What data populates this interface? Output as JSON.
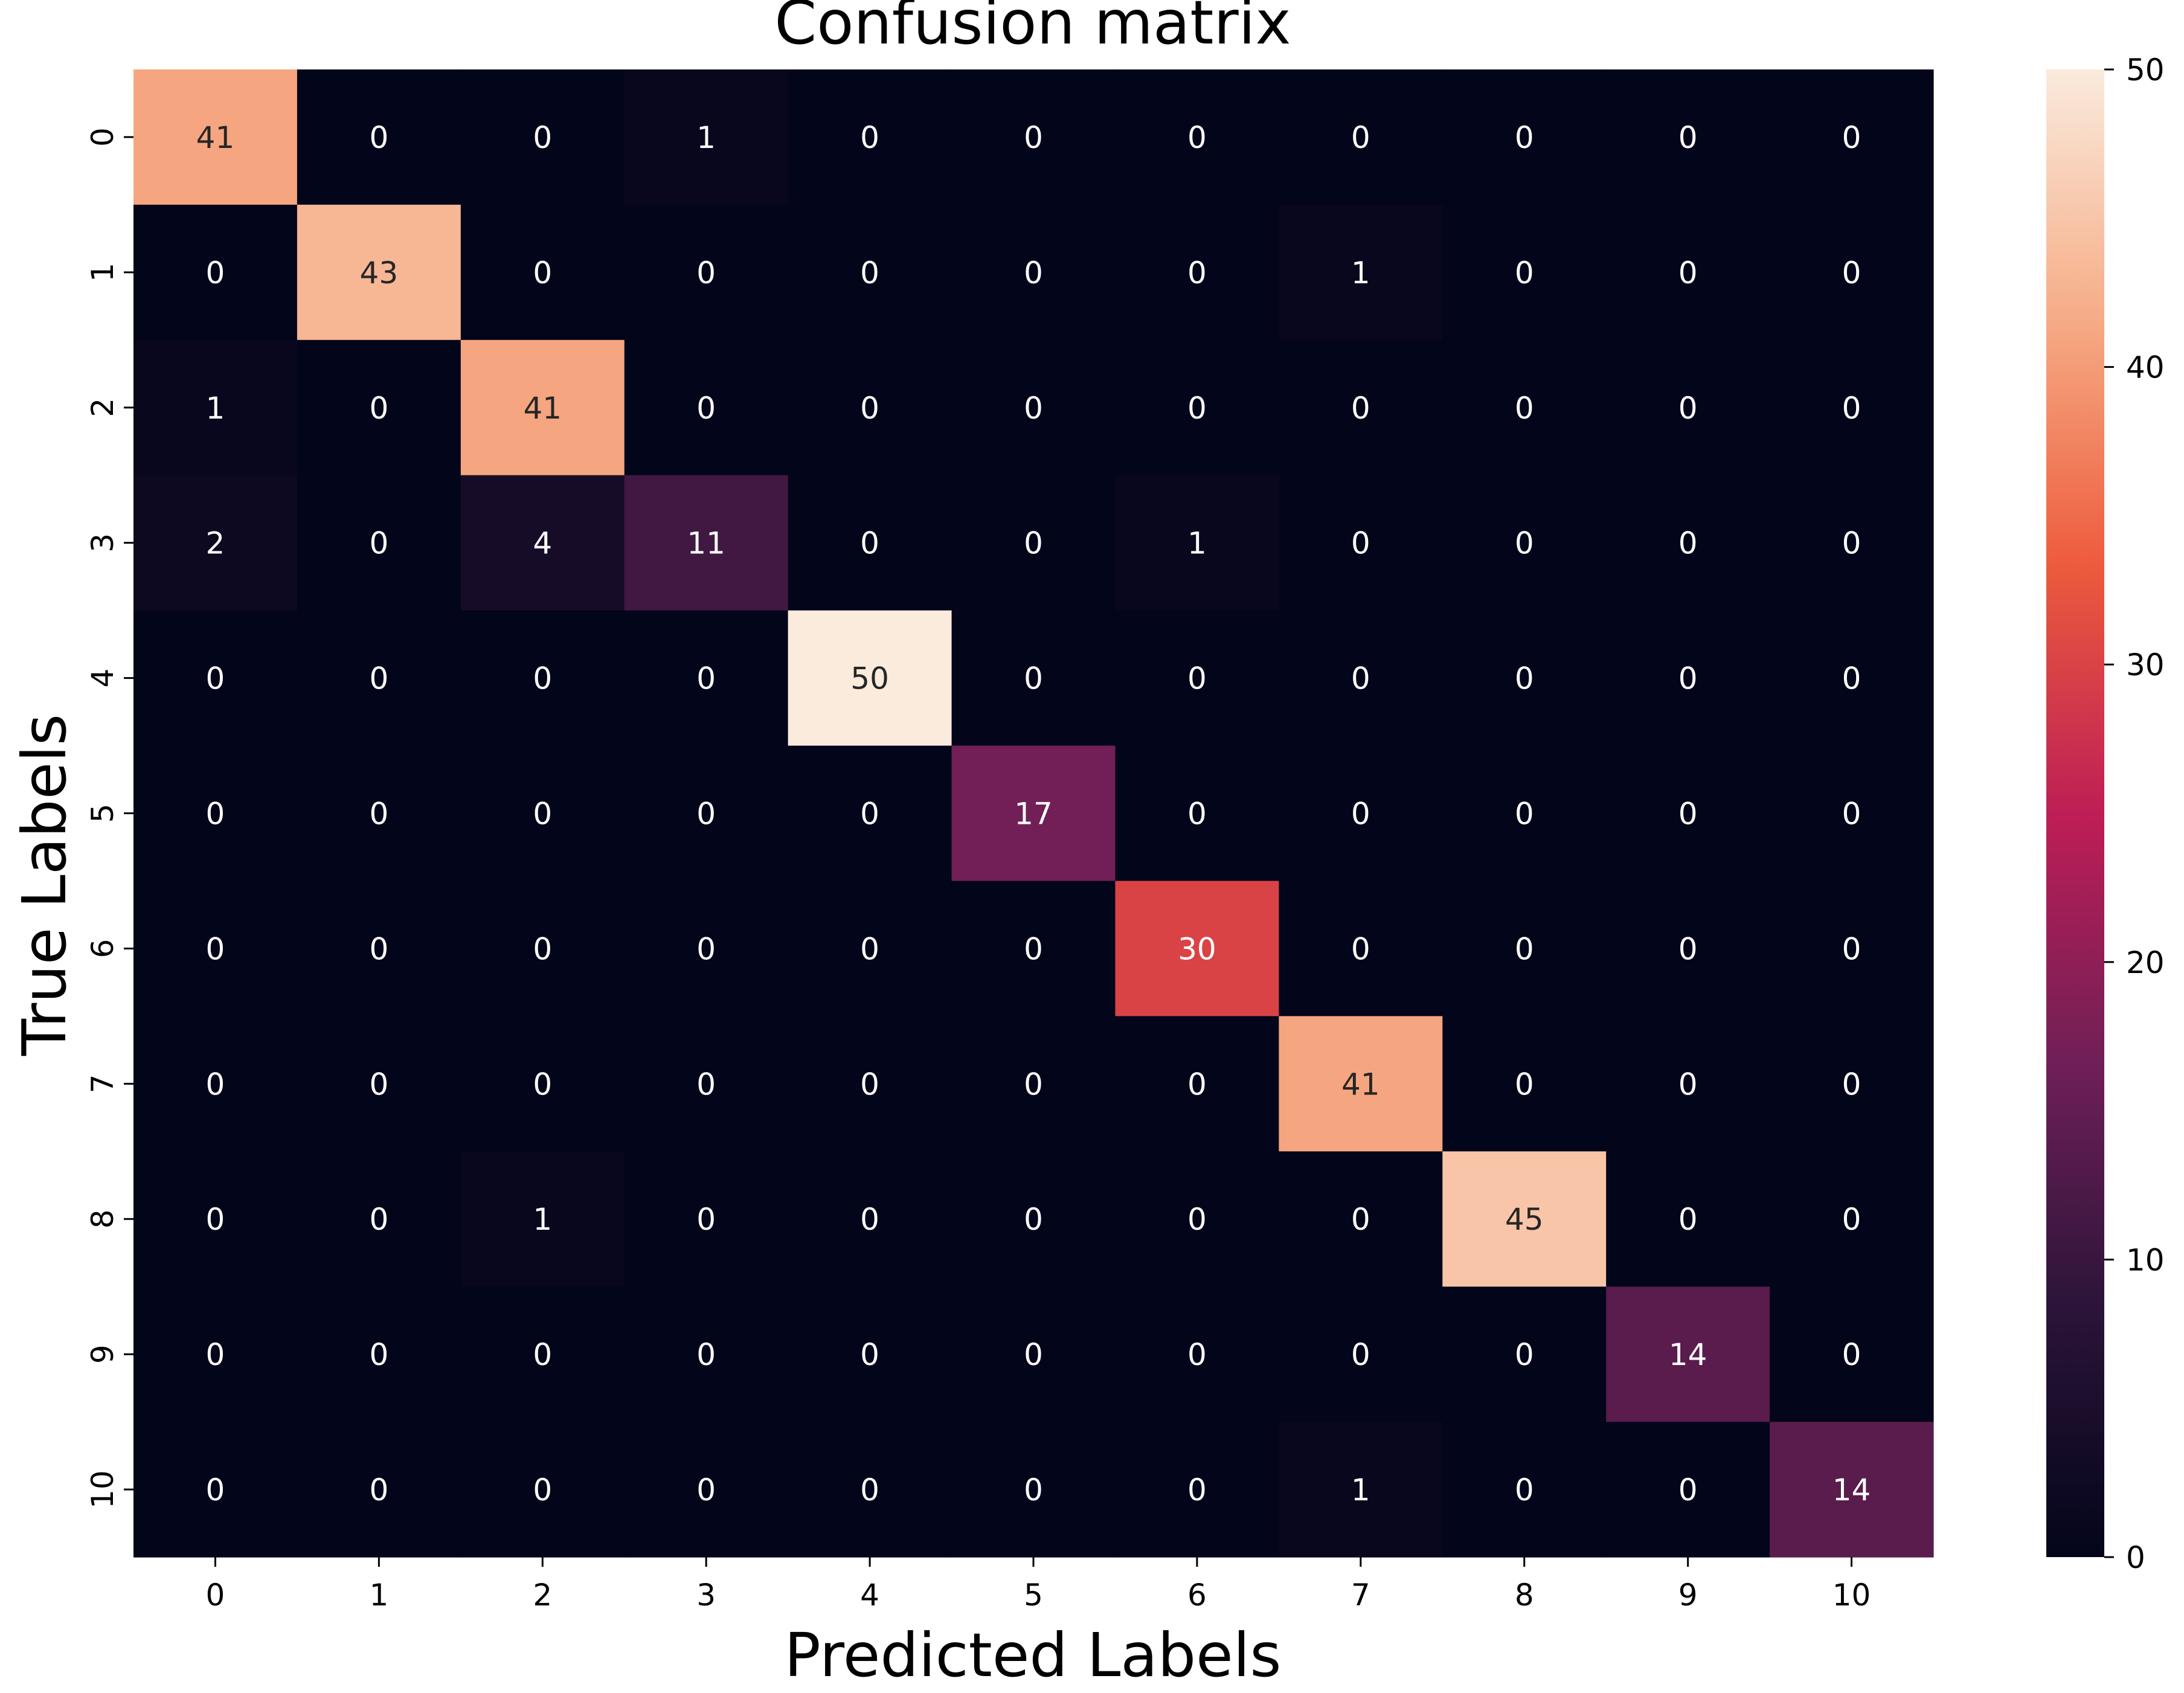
{
  "chart_data": {
    "type": "heatmap",
    "title": "Confusion matrix",
    "xlabel": "Predicted Labels",
    "ylabel": "True Labels",
    "x_categories": [
      "0",
      "1",
      "2",
      "3",
      "4",
      "5",
      "6",
      "7",
      "8",
      "9",
      "10"
    ],
    "y_categories": [
      "0",
      "1",
      "2",
      "3",
      "4",
      "5",
      "6",
      "7",
      "8",
      "9",
      "10"
    ],
    "values": [
      [
        41,
        0,
        0,
        1,
        0,
        0,
        0,
        0,
        0,
        0,
        0
      ],
      [
        0,
        43,
        0,
        0,
        0,
        0,
        0,
        1,
        0,
        0,
        0
      ],
      [
        1,
        0,
        41,
        0,
        0,
        0,
        0,
        0,
        0,
        0,
        0
      ],
      [
        2,
        0,
        4,
        11,
        0,
        0,
        1,
        0,
        0,
        0,
        0
      ],
      [
        0,
        0,
        0,
        0,
        50,
        0,
        0,
        0,
        0,
        0,
        0
      ],
      [
        0,
        0,
        0,
        0,
        0,
        17,
        0,
        0,
        0,
        0,
        0
      ],
      [
        0,
        0,
        0,
        0,
        0,
        0,
        30,
        0,
        0,
        0,
        0
      ],
      [
        0,
        0,
        0,
        0,
        0,
        0,
        0,
        41,
        0,
        0,
        0
      ],
      [
        0,
        0,
        1,
        0,
        0,
        0,
        0,
        0,
        45,
        0,
        0
      ],
      [
        0,
        0,
        0,
        0,
        0,
        0,
        0,
        0,
        0,
        14,
        0
      ],
      [
        0,
        0,
        0,
        0,
        0,
        0,
        0,
        1,
        0,
        0,
        14
      ]
    ],
    "colorbar": {
      "range": [
        0,
        50
      ],
      "ticks": [
        "0",
        "10",
        "20",
        "30",
        "40",
        "50"
      ],
      "colormap": "rocket",
      "stops": [
        "#03051a",
        "#2b1438",
        "#701f57",
        "#be1e55",
        "#ed5b3c",
        "#f6ac86",
        "#faebdd"
      ]
    }
  }
}
